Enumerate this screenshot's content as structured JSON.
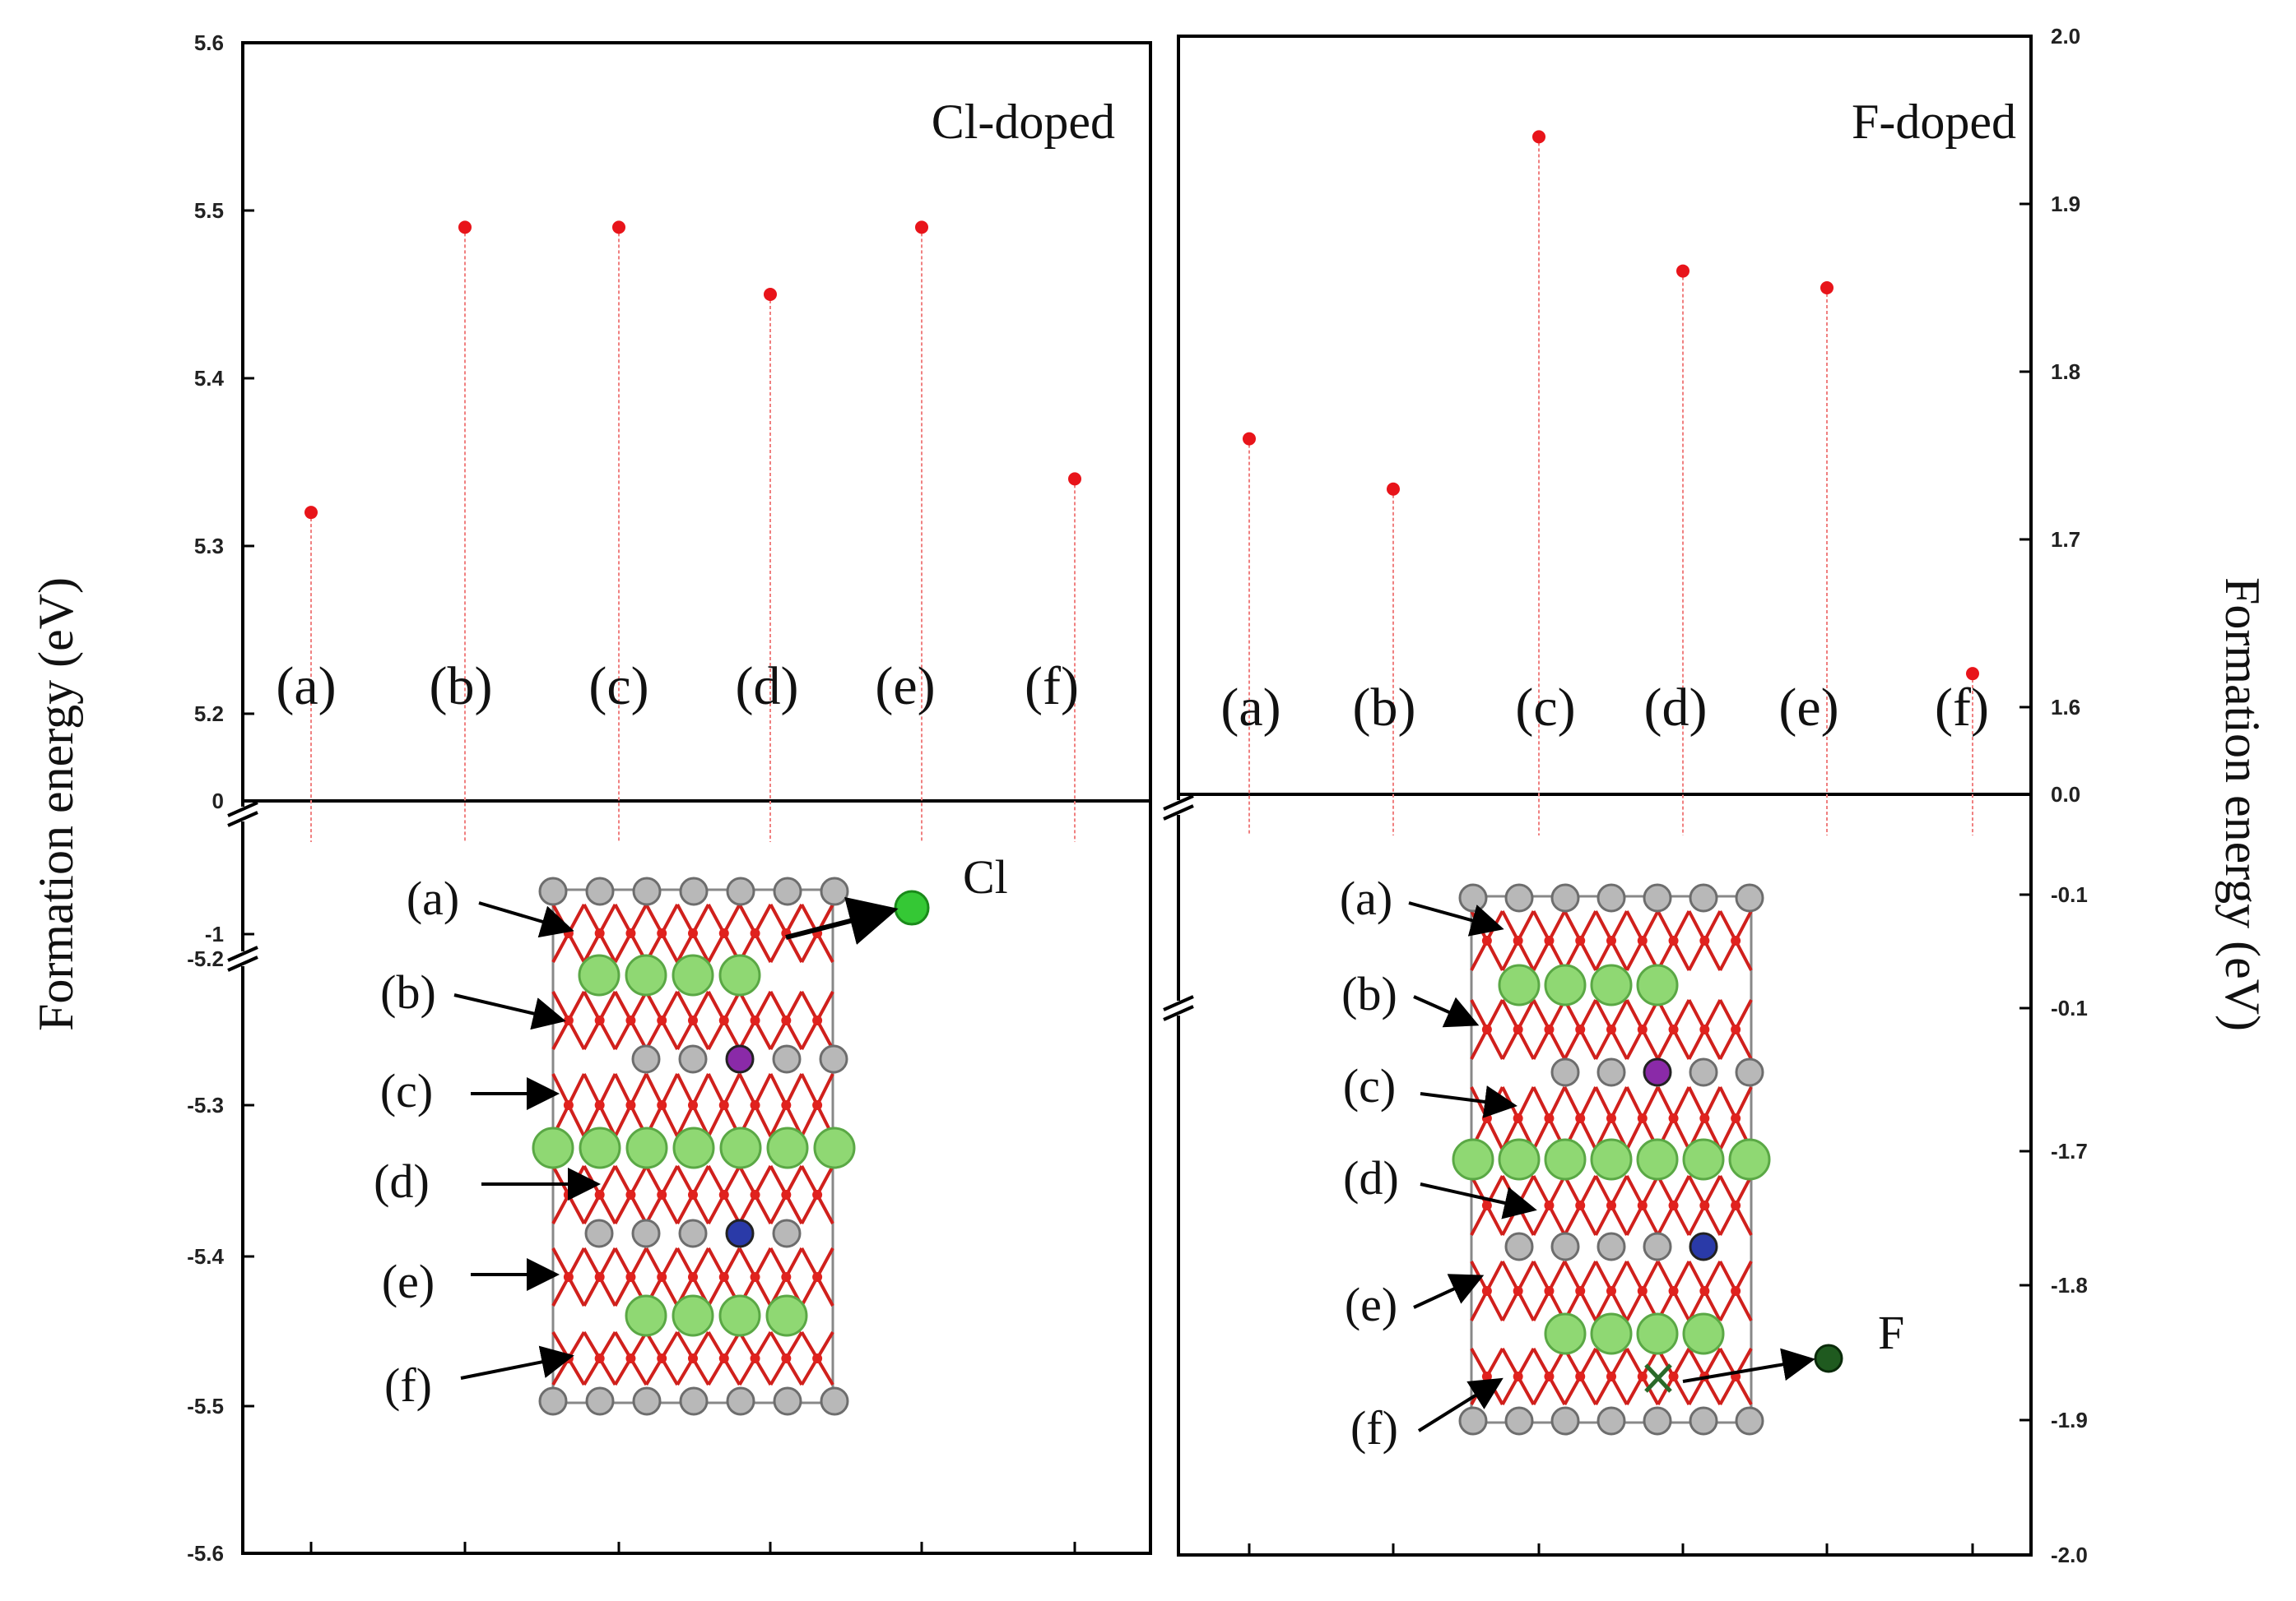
{
  "y_axis_label_left": "Formation energy (eV)",
  "y_axis_label_right": "Formation energy (eV)",
  "chart_data": [
    {
      "type": "scatter",
      "title": "Cl-doped",
      "categories": [
        "(a)",
        "(b)",
        "(c)",
        "(d)",
        "(e)",
        "(f)"
      ],
      "values": [
        5.32,
        5.49,
        5.49,
        5.45,
        5.49,
        5.34
      ],
      "ylabel": "Formation energy (eV)",
      "upper_range": [
        5.2,
        5.6
      ],
      "upper_ticks": [
        "5.2",
        "5.3",
        "5.4",
        "5.5",
        "5.6"
      ],
      "zero_tick": "0",
      "lower_ticks": [
        "-1",
        "-5.2",
        "-5.3",
        "-5.4",
        "-5.5",
        "-5.6"
      ],
      "axis_break": true,
      "marker_color": "#e8141a",
      "dropline_color": "#f08080",
      "inset_labels": [
        "(a)",
        "(b)",
        "(c)",
        "(d)",
        "(e)",
        "(f)"
      ],
      "inset_atom_label": "Cl"
    },
    {
      "type": "scatter",
      "title": "F-doped",
      "categories": [
        "(a)",
        "(b)",
        "(c)",
        "(d)",
        "(e)",
        "(f)"
      ],
      "values": [
        1.76,
        1.73,
        1.94,
        1.86,
        1.85,
        1.62
      ],
      "ylabel": "Formation energy (eV)",
      "upper_range": [
        1.6,
        2.0
      ],
      "upper_ticks": [
        "1.6",
        "1.7",
        "1.8",
        "1.9",
        "2.0"
      ],
      "zero_tick": "0.0",
      "lower_ticks": [
        "-0.1",
        "-0.1",
        "-1.7",
        "-1.8",
        "-1.9",
        "-2.0"
      ],
      "axis_break": true,
      "marker_color": "#e8141a",
      "dropline_color": "#f08080",
      "inset_labels": [
        "(a)",
        "(b)",
        "(c)",
        "(d)",
        "(e)",
        "(f)"
      ],
      "inset_atom_label": "F"
    }
  ]
}
